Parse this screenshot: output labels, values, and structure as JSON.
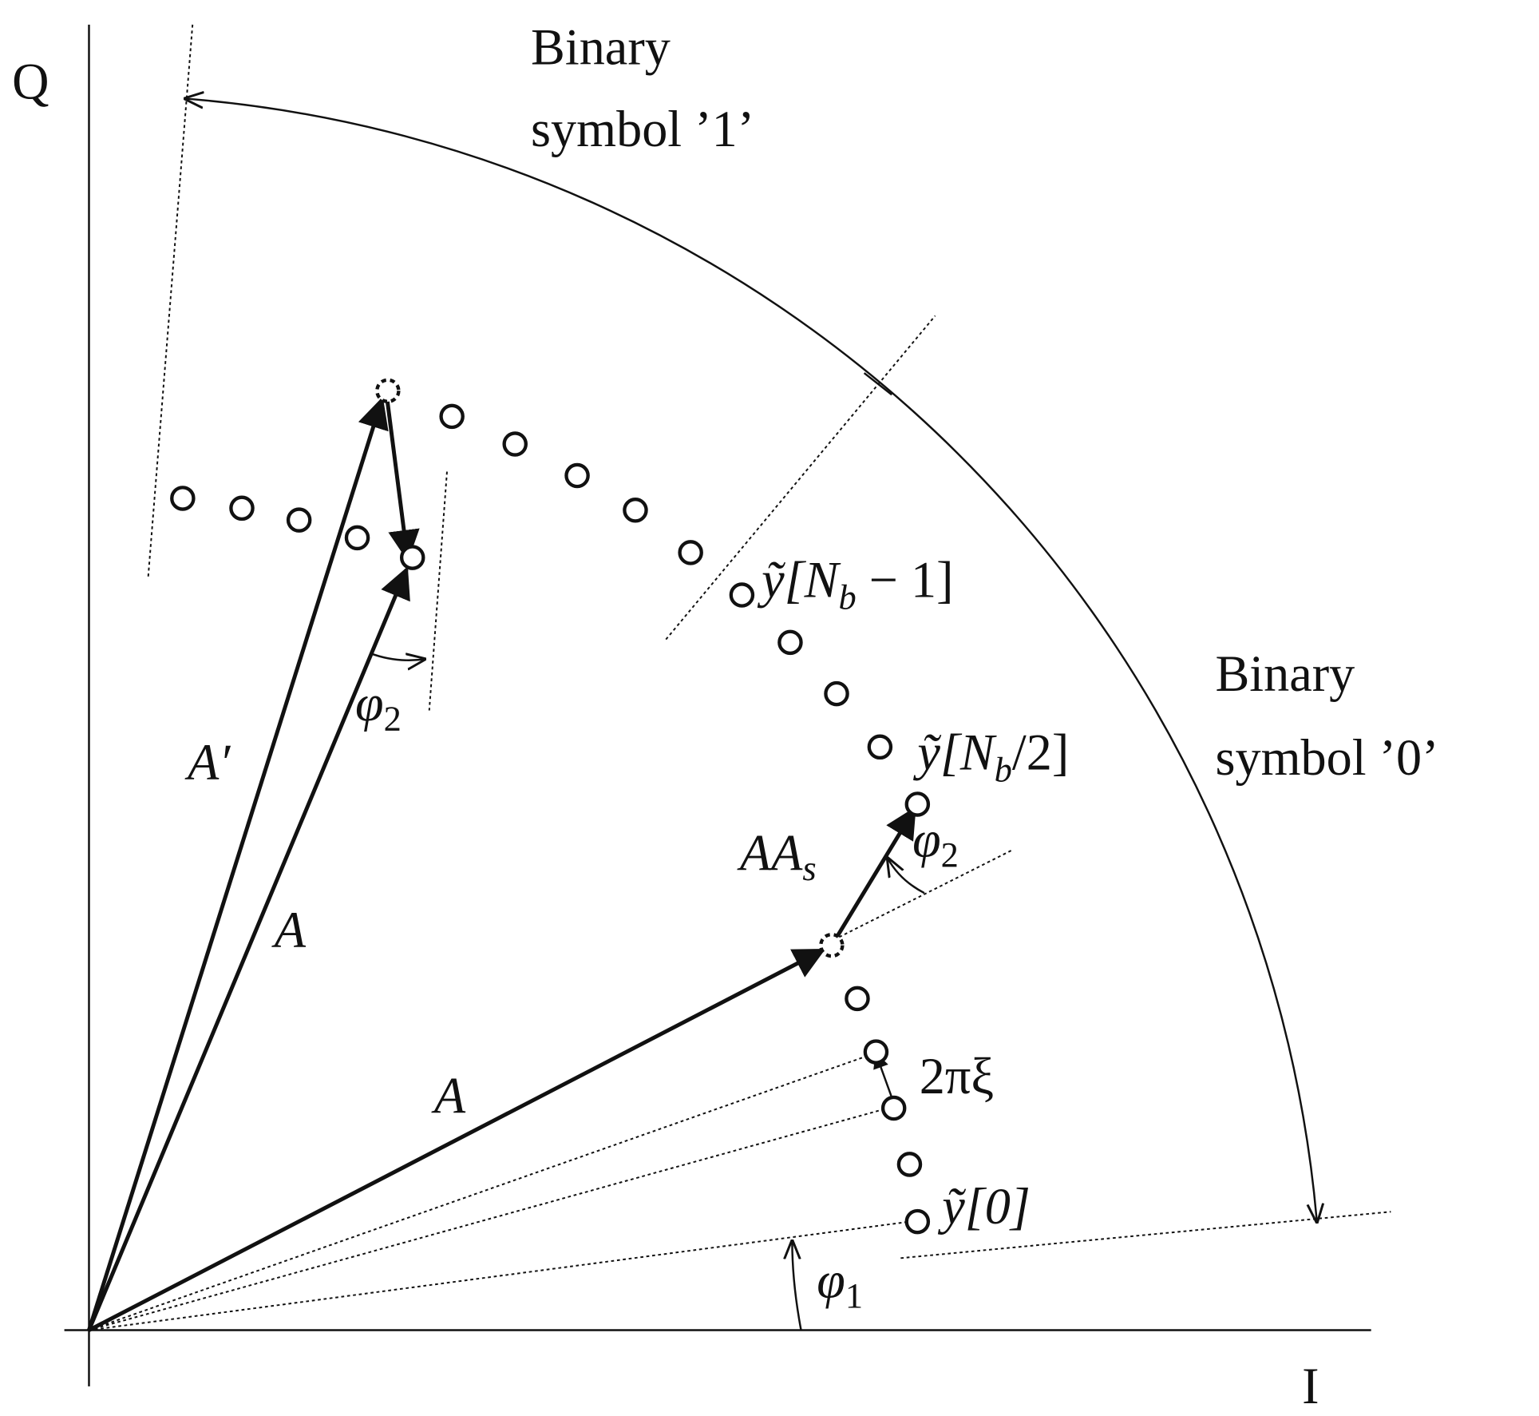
{
  "axes": {
    "q": "Q",
    "i": "I"
  },
  "regions": [
    {
      "line1": "Binary",
      "line2": "symbol ’1’"
    },
    {
      "line1": "Binary",
      "line2": "symbol ’0’"
    }
  ],
  "labels": {
    "y_nb_minus_1": {
      "base": "ỹ[N",
      "sub": "b",
      "rest": " − 1]"
    },
    "y_nb_half": {
      "base": "ỹ[N",
      "sub": "b",
      "rest": "/2]"
    },
    "y_0": "ỹ[0]",
    "a_prime": "A′",
    "a_upper": "A",
    "a_lower": "A",
    "aa_s": {
      "base": "AA",
      "sub": "s"
    },
    "phi2_upper": {
      "base": "φ",
      "sub": "2"
    },
    "phi2_lower": {
      "base": "φ",
      "sub": "2"
    },
    "phi1": {
      "base": "φ",
      "sub": "1"
    },
    "two_pi_xi": "2πξ"
  }
}
